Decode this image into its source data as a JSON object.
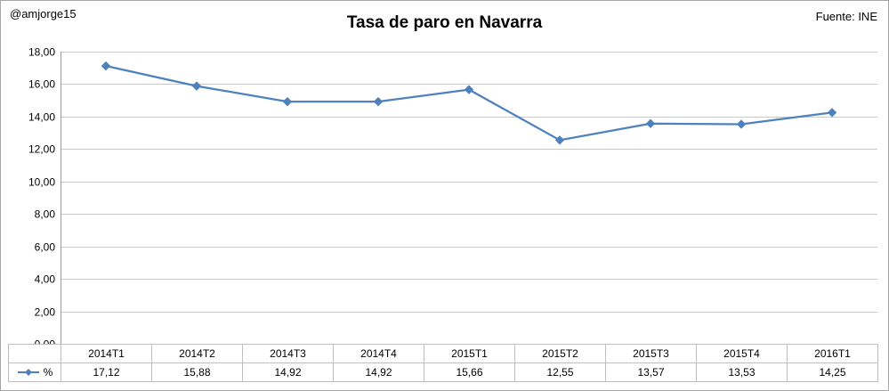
{
  "header": {
    "handle": "@amjorge15",
    "source": "Fuente: INE"
  },
  "chart_data": {
    "type": "line",
    "title": "Tasa de paro en Navarra",
    "categories": [
      "2014T1",
      "2014T2",
      "2014T3",
      "2014T4",
      "2015T1",
      "2015T2",
      "2015T3",
      "2015T4",
      "2016T1"
    ],
    "series": [
      {
        "name": "%",
        "values": [
          17.12,
          15.88,
          14.92,
          14.92,
          15.66,
          12.55,
          13.57,
          13.53,
          14.25
        ]
      }
    ],
    "ylim": [
      0,
      18
    ],
    "ytick_step": 2,
    "grid": true,
    "legend_position": "table-left",
    "decimal_separator": ",",
    "marker": "diamond"
  },
  "colors": {
    "series_line": "#4F81BD",
    "grid_line": "#c9c9c9",
    "axis_line": "#9a9a9a",
    "table_border": "#bfbfbf",
    "frame_border": "#a6a6a6",
    "text": "#000000"
  }
}
